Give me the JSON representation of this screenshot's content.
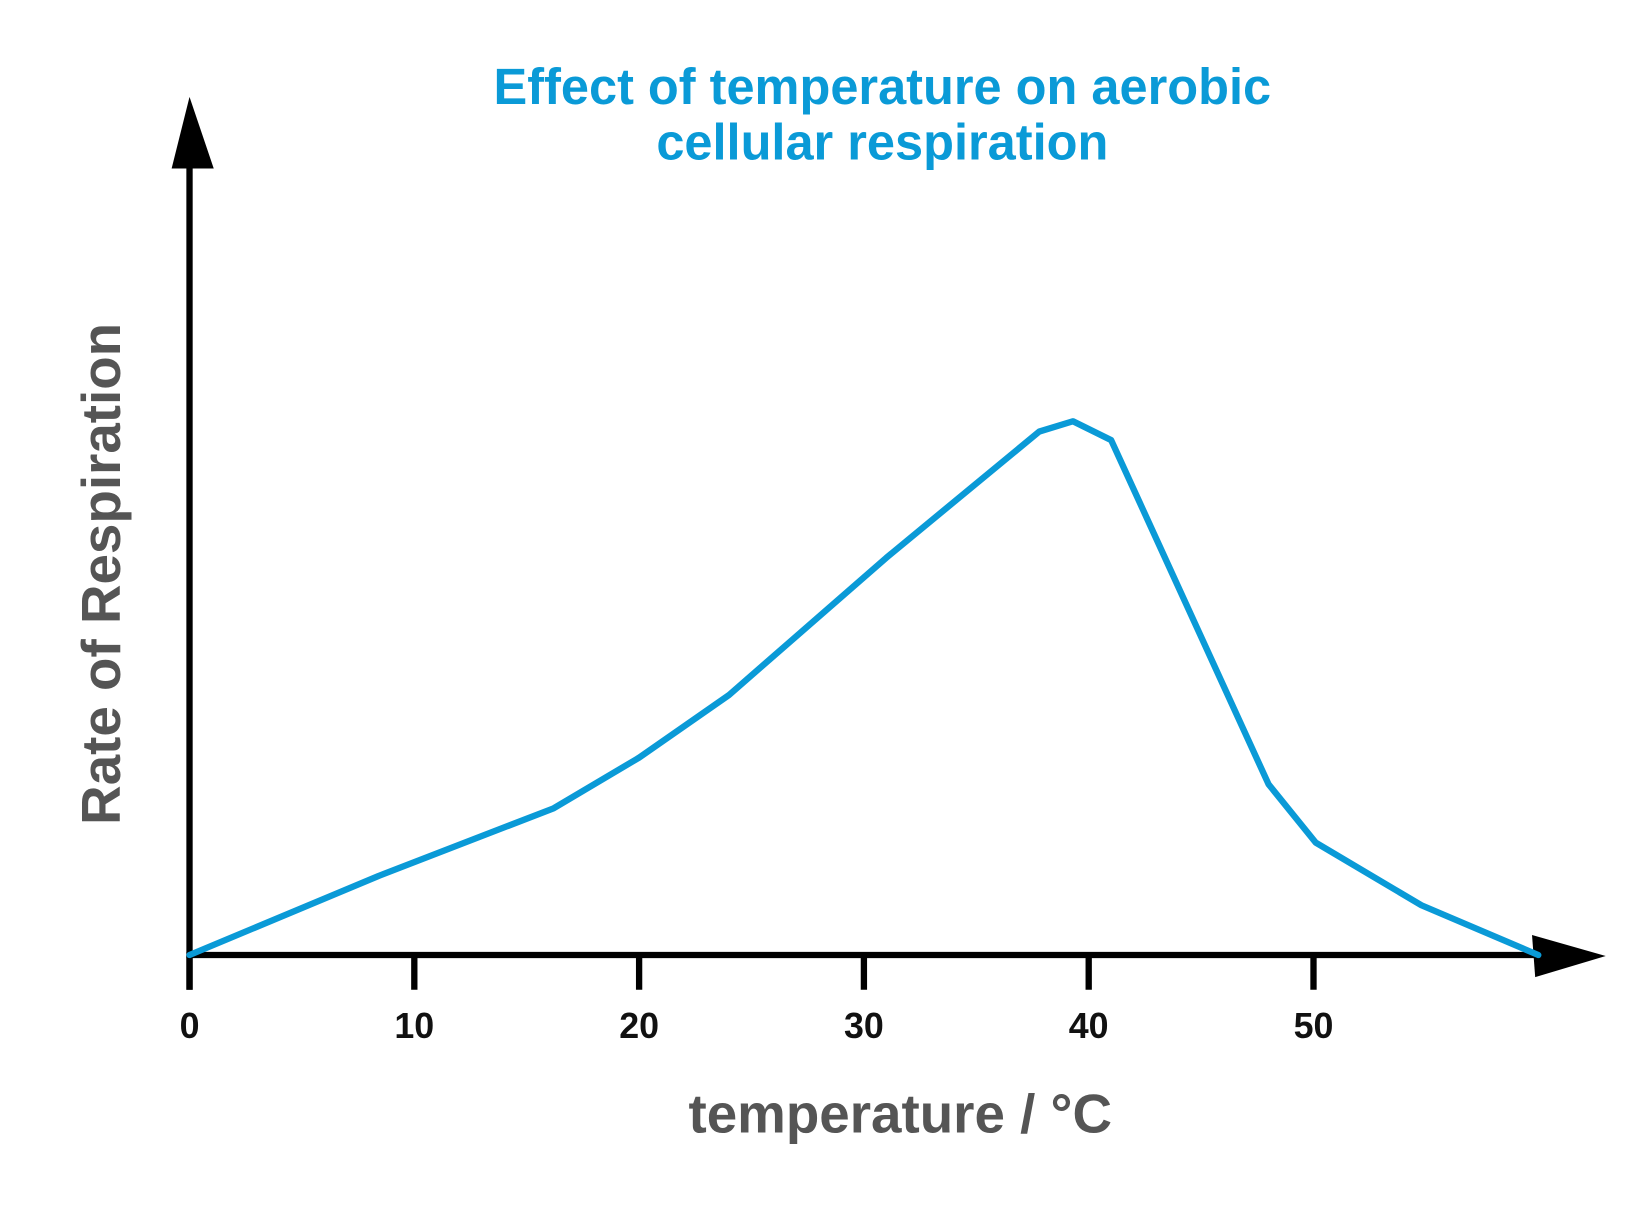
{
  "chart_data": {
    "type": "line",
    "title": [
      "Effect of temperature on aerobic",
      "cellular respiration"
    ],
    "xlabel": "temperature / °C",
    "ylabel": "Rate of Respiration",
    "x": [
      0,
      8.4,
      16.2,
      20,
      24,
      31,
      37.8,
      39.3,
      41,
      48,
      50.1,
      54.8,
      60
    ],
    "series": [
      {
        "name": "Rate of Respiration",
        "color": "#0a9ad7",
        "values": [
          0,
          9.2,
          17.1,
          23,
          30.3,
          46.3,
          61,
          62.2,
          60,
          19.9,
          13.1,
          5.8,
          0
        ]
      }
    ],
    "xlim": [
      0,
      63
    ],
    "xticks": [
      0,
      10,
      20,
      30,
      40,
      50
    ],
    "ylim": [
      0,
      100
    ],
    "grid": false
  }
}
